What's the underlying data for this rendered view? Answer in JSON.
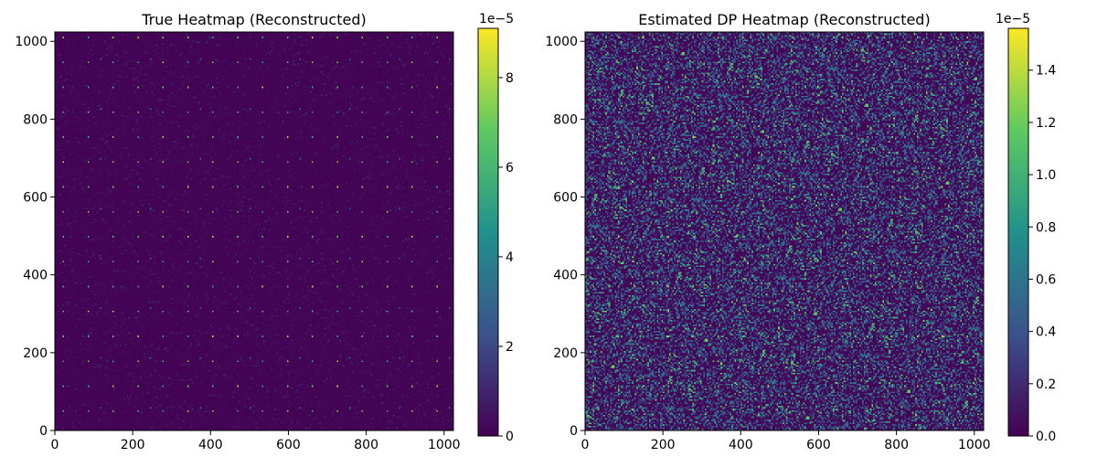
{
  "chart_data": [
    {
      "type": "heatmap",
      "title": "True Heatmap (Reconstructed)",
      "xlabel": "",
      "ylabel": "",
      "xlim": [
        0,
        1024
      ],
      "ylim": [
        0,
        1024
      ],
      "x_ticks": [
        0,
        200,
        400,
        600,
        800,
        1000
      ],
      "y_ticks": [
        0,
        200,
        400,
        600,
        800,
        1000
      ],
      "colorbar": {
        "scale_label": "1e−5",
        "range": [
          0,
          9.1
        ],
        "ticks": [
          0,
          2,
          4,
          6,
          8
        ],
        "tick_labels": [
          "0",
          "2",
          "4",
          "6",
          "8"
        ]
      },
      "colormap": [
        "#440154",
        "#3b528b",
        "#21918c",
        "#5ec962",
        "#fde725"
      ],
      "pattern": {
        "description_values": "mostly near-zero values with a periodic grid of bright peaks",
        "background_level": 0.02,
        "peak_period": 64,
        "peak_level": 0.95
      }
    },
    {
      "type": "heatmap",
      "title": "Estimated DP Heatmap (Reconstructed)",
      "xlabel": "",
      "ylabel": "",
      "xlim": [
        0,
        1024
      ],
      "ylim": [
        0,
        1024
      ],
      "x_ticks": [
        0,
        200,
        400,
        600,
        800,
        1000
      ],
      "y_ticks": [
        0,
        200,
        400,
        600,
        800,
        1000
      ],
      "colorbar": {
        "scale_label": "1e−5",
        "range": [
          0,
          1.56
        ],
        "ticks": [
          0.0,
          0.2,
          0.4,
          0.6,
          0.8,
          1.0,
          1.2,
          1.4
        ],
        "tick_labels": [
          "0.0",
          "0.2",
          "0.4",
          "0.6",
          "0.8",
          "1.0",
          "1.2",
          "1.4"
        ]
      },
      "colormap": [
        "#440154",
        "#3b528b",
        "#21918c",
        "#5ec962",
        "#fde725"
      ],
      "pattern": {
        "background_level": 0.05,
        "noise_density": 0.35,
        "peak_period": 64,
        "peak_level": 0.6
      }
    }
  ]
}
